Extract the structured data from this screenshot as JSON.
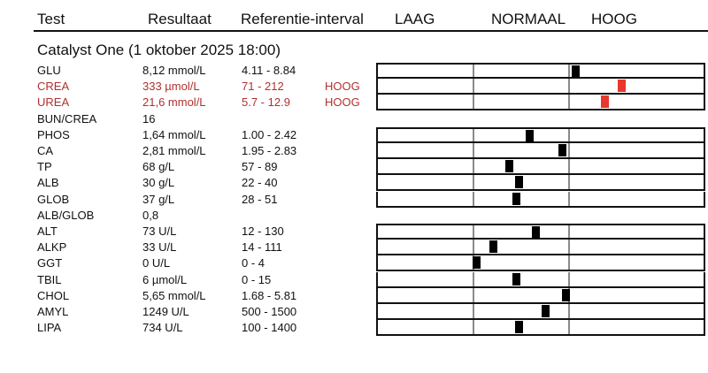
{
  "header": {
    "test": "Test",
    "result": "Resultaat",
    "reference": "Referentie-interval",
    "low": "LAAG",
    "normal": "NORMAAL",
    "high": "HOOG"
  },
  "section": {
    "title": "Catalyst One (1 oktober 2025 18:00)"
  },
  "colors": {
    "high_text": "#b0302f",
    "high_marker": "#e8372c",
    "normal_marker": "#000000",
    "divider": "#8a8a8a"
  },
  "rows": [
    {
      "name": "GLU",
      "result": "8,12 mmol/L",
      "ref": "4.11 - 8.84",
      "flag": "",
      "high": false,
      "bar": true,
      "position": 0.6
    },
    {
      "name": "CREA",
      "result": "333 µmol/L",
      "ref": "71 - 212",
      "flag": "HOOG",
      "high": true,
      "bar": true,
      "position": 0.74
    },
    {
      "name": "UREA",
      "result": "21,6 mmol/L",
      "ref": "5.7 - 12.9",
      "flag": "HOOG",
      "high": true,
      "bar": true,
      "position": 0.69
    },
    {
      "name": "BUN/CREA",
      "result": "16",
      "ref": "",
      "flag": "",
      "high": false,
      "bar": false
    },
    {
      "name": "PHOS",
      "result": "1,64 mmol/L",
      "ref": "1.00 - 2.42",
      "flag": "",
      "high": false,
      "bar": true,
      "position": 0.46
    },
    {
      "name": "CA",
      "result": "2,81 mmol/L",
      "ref": "1.95 - 2.83",
      "flag": "",
      "high": false,
      "bar": true,
      "position": 0.56
    },
    {
      "name": "TP",
      "result": "68 g/L",
      "ref": "57 - 89",
      "flag": "",
      "high": false,
      "bar": true,
      "position": 0.4
    },
    {
      "name": "ALB",
      "result": "30 g/L",
      "ref": "22 - 40",
      "flag": "",
      "high": false,
      "bar": true,
      "position": 0.43
    },
    {
      "name": "GLOB",
      "result": "37 g/L",
      "ref": "28 - 51",
      "flag": "",
      "high": false,
      "bar": true,
      "position": 0.42
    },
    {
      "name": "ALB/GLOB",
      "result": "0,8",
      "ref": "",
      "flag": "",
      "high": false,
      "bar": false
    },
    {
      "name": "ALT",
      "result": "73 U/L",
      "ref": "12 - 130",
      "flag": "",
      "high": false,
      "bar": true,
      "position": 0.48
    },
    {
      "name": "ALKP",
      "result": "33 U/L",
      "ref": "14 - 111",
      "flag": "",
      "high": false,
      "bar": true,
      "position": 0.35
    },
    {
      "name": "GGT",
      "result": "0 U/L",
      "ref": "0 - 4",
      "flag": "",
      "high": false,
      "bar": true,
      "position": 0.3
    },
    {
      "name": "TBIL",
      "result": "6 µmol/L",
      "ref": "0 - 15",
      "flag": "",
      "high": false,
      "bar": true,
      "position": 0.42
    },
    {
      "name": "CHOL",
      "result": "5,65 mmol/L",
      "ref": "1.68 - 5.81",
      "flag": "",
      "high": false,
      "bar": true,
      "position": 0.57
    },
    {
      "name": "AMYL",
      "result": "1249 U/L",
      "ref": "500 - 1500",
      "flag": "",
      "high": false,
      "bar": true,
      "position": 0.51
    },
    {
      "name": "LIPA",
      "result": "734 U/L",
      "ref": "100 - 1400",
      "flag": "",
      "high": false,
      "bar": true,
      "position": 0.43
    }
  ]
}
